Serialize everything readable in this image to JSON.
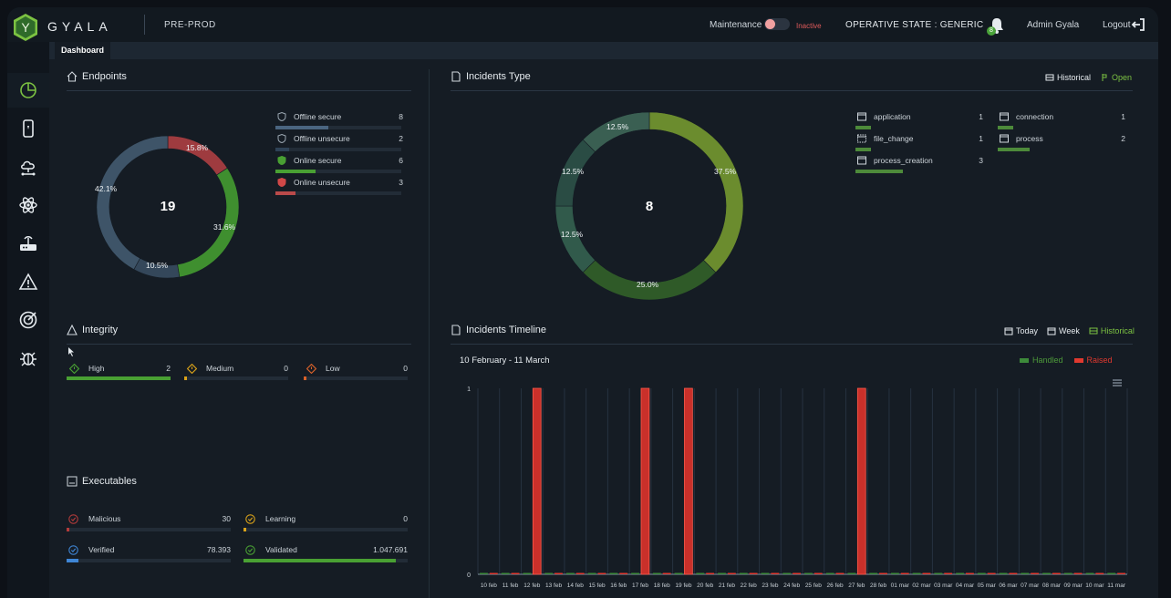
{
  "header": {
    "brand": "GYALA",
    "env": "PRE-PROD",
    "maintenance_label": "Maintenance",
    "maintenance_state": "Inactive",
    "operative_state": "OPERATIVE STATE : GENERIC",
    "notifications": "8",
    "user": "Admin Gyala",
    "logout": "Logout"
  },
  "tabs": {
    "active": "Dashboard"
  },
  "sidebar": {
    "items": [
      "dashboard-icon",
      "mobile-icon",
      "cloud-network-icon",
      "atom-icon",
      "router-icon",
      "alert-icon",
      "target-icon",
      "bug-icon"
    ]
  },
  "endpoints": {
    "title": "Endpoints",
    "total": "19",
    "legend": [
      {
        "label": "Offline secure",
        "value": "8",
        "color": "#4a6580",
        "fraction": 0.42
      },
      {
        "label": "Offline unsecure",
        "value": "2",
        "color": "#2e4256",
        "fraction": 0.11
      },
      {
        "label": "Online secure",
        "value": "6",
        "color": "#49a033",
        "fraction": 0.32
      },
      {
        "label": "Online unsecure",
        "value": "3",
        "color": "#b94a4a",
        "fraction": 0.16
      }
    ]
  },
  "incidents_type": {
    "title": "Incidents Type",
    "links": {
      "historical": "Historical",
      "open": "Open"
    },
    "total": "8",
    "legend_left": [
      {
        "label": "application",
        "value": "1",
        "fraction": 0.12
      },
      {
        "label": "file_change",
        "value": "1",
        "fraction": 0.12
      },
      {
        "label": "process_creation",
        "value": "3",
        "fraction": 0.38
      }
    ],
    "legend_right": [
      {
        "label": "connection",
        "value": "1",
        "fraction": 0.12
      },
      {
        "label": "process",
        "value": "2",
        "fraction": 0.25
      }
    ]
  },
  "integrity": {
    "title": "Integrity",
    "items": [
      {
        "label": "High",
        "value": "2",
        "color": "#49a033",
        "fraction": 1.0
      },
      {
        "label": "Medium",
        "value": "0",
        "color": "#d9a21a",
        "fraction": 0.02
      },
      {
        "label": "Low",
        "value": "0",
        "color": "#d9622a",
        "fraction": 0.02
      }
    ]
  },
  "executables": {
    "title": "Executables",
    "items": [
      {
        "label": "Malicious",
        "value": "30",
        "color": "#b33b3b",
        "fraction": 0.01
      },
      {
        "label": "Learning",
        "value": "0",
        "color": "#d9a21a",
        "fraction": 0.01
      },
      {
        "label": "Verified",
        "value": "78.393",
        "color": "#3f86d6",
        "fraction": 0.07
      },
      {
        "label": "Validated",
        "value": "1.047.691",
        "color": "#49a033",
        "fraction": 0.93
      }
    ]
  },
  "timeline": {
    "title": "Incidents Timeline",
    "links": {
      "today": "Today",
      "week": "Week",
      "historical": "Historical"
    },
    "range": "10 February - 11 March",
    "legend": [
      {
        "name": "Handled",
        "color": "#3d8a3a"
      },
      {
        "name": "Raised",
        "color": "#e0392f"
      }
    ]
  },
  "chart_data": [
    {
      "type": "pie",
      "title": "Endpoints",
      "categories": [
        "Offline secure",
        "Offline unsecure",
        "Online secure",
        "Online unsecure"
      ],
      "values": [
        8,
        2,
        6,
        3
      ],
      "labels": [
        "42.1%",
        "10.5%",
        "31.6%",
        "15.8%"
      ],
      "colors": [
        "#3e5468",
        "#34475a",
        "#3f8f2f",
        "#9e3b3f"
      ],
      "center_label": "19"
    },
    {
      "type": "pie",
      "title": "Incidents Type",
      "categories": [
        "process_creation",
        "process",
        "application",
        "connection",
        "file_change"
      ],
      "values": [
        3,
        2,
        1,
        1,
        1
      ],
      "labels": [
        "37.5%",
        "25.0%",
        "12.5%",
        "12.5%",
        "12.5%"
      ],
      "colors": [
        "#6b8c2e",
        "#2f5a28",
        "#315a4b",
        "#2a4c44",
        "#3a5f52"
      ],
      "center_label": "8"
    },
    {
      "type": "bar",
      "title": "Incidents Timeline",
      "categories": [
        "10 feb",
        "11 feb",
        "12 feb",
        "13 feb",
        "14 feb",
        "15 feb",
        "16 feb",
        "17 feb",
        "18 feb",
        "19 feb",
        "20 feb",
        "21 feb",
        "22 feb",
        "23 feb",
        "24 feb",
        "25 feb",
        "26 feb",
        "27 feb",
        "28 feb",
        "01 mar",
        "02 mar",
        "03 mar",
        "04 mar",
        "05 mar",
        "06 mar",
        "07 mar",
        "08 mar",
        "09 mar",
        "10 mar",
        "11 mar"
      ],
      "series": [
        {
          "name": "Handled",
          "values": [
            0,
            0,
            0,
            0,
            0,
            0,
            0,
            0,
            0,
            0,
            0,
            0,
            0,
            0,
            0,
            0,
            0,
            0,
            0,
            0,
            0,
            0,
            0,
            0,
            0,
            0,
            0,
            0,
            0,
            0
          ]
        },
        {
          "name": "Raised",
          "values": [
            0,
            0,
            1,
            0,
            0,
            0,
            0,
            1,
            0,
            1,
            0,
            0,
            0,
            0,
            0,
            0,
            0,
            1,
            0,
            0,
            0,
            0,
            0,
            0,
            0,
            0,
            0,
            0,
            0,
            0
          ]
        }
      ],
      "yticks": [
        "0",
        "1"
      ],
      "ylim": [
        0,
        1
      ],
      "grid": true,
      "legend": "top-right"
    }
  ]
}
